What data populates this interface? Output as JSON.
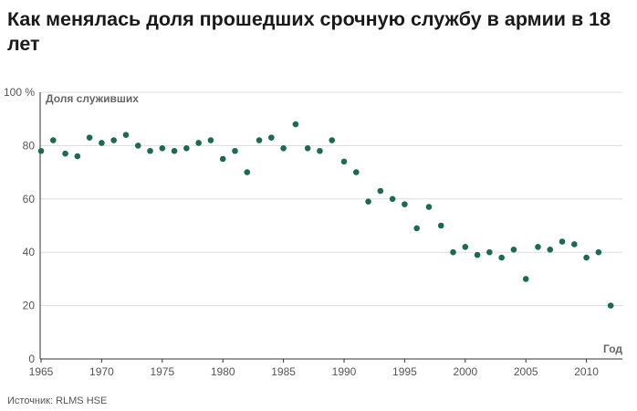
{
  "title": "Как менялась доля прошедших срочную службу в армии в 18 лет",
  "source": "Источник: RLMS HSE",
  "colors": {
    "point": "#1a6b51",
    "grid": "#dddddd",
    "axis": "#333333"
  },
  "chart_data": {
    "type": "scatter",
    "title": "Как менялась доля прошедших срочную службу в армии в 18 лет",
    "ylabel": "Доля служивших",
    "xlabel": "Год",
    "xlim": [
      1965,
      2013
    ],
    "ylim": [
      0,
      100
    ],
    "x_ticks": [
      {
        "value": 1965,
        "label": "1965"
      },
      {
        "value": 1970,
        "label": "1970"
      },
      {
        "value": 1975,
        "label": "1975"
      },
      {
        "value": 1980,
        "label": "1980"
      },
      {
        "value": 1985,
        "label": "1985"
      },
      {
        "value": 1990,
        "label": "1990"
      },
      {
        "value": 1995,
        "label": "1995"
      },
      {
        "value": 2000,
        "label": "2000"
      },
      {
        "value": 2005,
        "label": "2005"
      },
      {
        "value": 2010,
        "label": "2010"
      }
    ],
    "y_ticks": [
      {
        "value": 0,
        "label": "0"
      },
      {
        "value": 20,
        "label": "20"
      },
      {
        "value": 40,
        "label": "40"
      },
      {
        "value": 60,
        "label": "60"
      },
      {
        "value": 80,
        "label": "80"
      },
      {
        "value": 100,
        "label": "100 %"
      }
    ],
    "grid": true,
    "x": [
      1965,
      1966,
      1967,
      1968,
      1969,
      1970,
      1971,
      1972,
      1973,
      1974,
      1975,
      1976,
      1977,
      1978,
      1979,
      1980,
      1981,
      1982,
      1983,
      1984,
      1985,
      1986,
      1987,
      1988,
      1989,
      1990,
      1991,
      1992,
      1993,
      1994,
      1995,
      1996,
      1997,
      1998,
      1999,
      2000,
      2001,
      2002,
      2003,
      2004,
      2005,
      2006,
      2007,
      2008,
      2009,
      2010,
      2011,
      2012
    ],
    "y": [
      78,
      82,
      77,
      76,
      83,
      81,
      82,
      84,
      80,
      78,
      79,
      78,
      79,
      81,
      82,
      75,
      78,
      70,
      82,
      83,
      79,
      88,
      79,
      78,
      82,
      74,
      70,
      59,
      63,
      60,
      58,
      49,
      57,
      50,
      40,
      42,
      39,
      40,
      38,
      41,
      30,
      42,
      41,
      44,
      43,
      38,
      40,
      20
    ]
  }
}
